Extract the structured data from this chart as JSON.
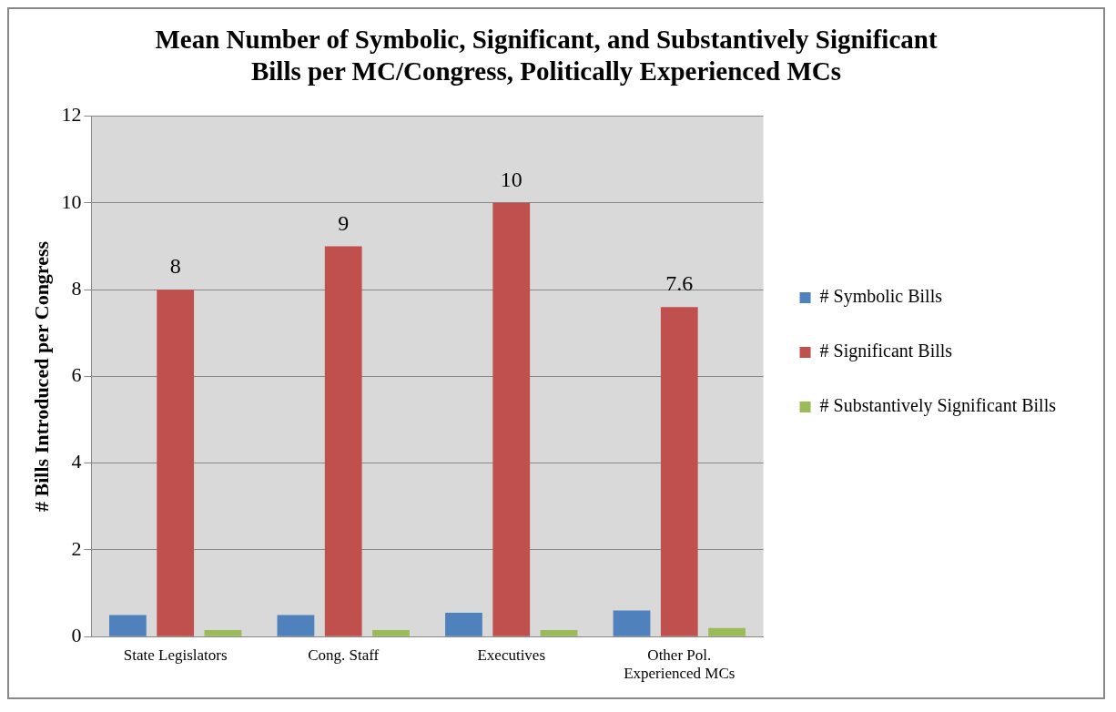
{
  "chart_data": {
    "type": "bar",
    "title": "Mean Number of Symbolic, Significant, and Substantively Significant\nBills per MC/Congress, Politically Experienced MCs",
    "ylabel": "# Bills Introduced per Congress",
    "categories": [
      "State Legislators",
      "Cong. Staff",
      "Executives",
      "Other Pol.\nExperienced MCs"
    ],
    "series": [
      {
        "name": "# Symbolic Bills",
        "color": "#4f81bd",
        "values": [
          0.5,
          0.5,
          0.55,
          0.6
        ]
      },
      {
        "name": "# Significant Bills",
        "color": "#c0504d",
        "values": [
          8,
          9,
          10,
          7.6
        ],
        "value_labels": [
          "8",
          "9",
          "10",
          "7.6"
        ]
      },
      {
        "name": "# Substantively Significant Bills",
        "color": "#9bbb59",
        "values": [
          0.15,
          0.15,
          0.15,
          0.2
        ]
      }
    ],
    "ylim": [
      0,
      12
    ],
    "yticks": [
      0,
      2,
      4,
      6,
      8,
      10,
      12
    ],
    "grid": "y",
    "legend": "right"
  }
}
